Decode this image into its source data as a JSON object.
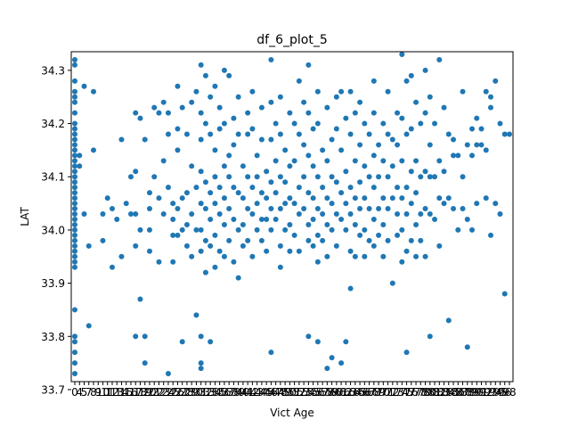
{
  "chart_data": {
    "type": "scatter",
    "title": "df_6_plot_5",
    "xlabel": "Vict Age",
    "ylabel": "LAT",
    "x_tick_labels": [
      "0",
      "4",
      "5",
      "7",
      "8",
      "9",
      "10",
      "11",
      "12",
      "13",
      "14",
      "15",
      "16",
      "17",
      "18",
      "19",
      "20",
      "21",
      "22",
      "23",
      "24",
      "25",
      "26",
      "27",
      "28",
      "29",
      "30",
      "31",
      "32",
      "33",
      "34",
      "35",
      "36",
      "37",
      "38",
      "39",
      "40",
      "41",
      "42",
      "43",
      "44",
      "45",
      "46",
      "47",
      "48",
      "49",
      "50",
      "51",
      "52",
      "53",
      "54",
      "55",
      "56",
      "57",
      "58",
      "59",
      "60",
      "61",
      "62",
      "63",
      "64",
      "65",
      "66",
      "67",
      "68",
      "69",
      "70",
      "71",
      "72",
      "73",
      "74",
      "75",
      "76",
      "77",
      "78",
      "79",
      "80",
      "81",
      "82",
      "83",
      "84",
      "85",
      "86",
      "87",
      "88",
      "89",
      "90",
      "91",
      "92",
      "93",
      "94",
      "95",
      "96",
      "98"
    ],
    "y_ticks": [
      33.7,
      33.8,
      33.9,
      34.0,
      34.1,
      34.2,
      34.3
    ],
    "ylim": [
      33.715,
      34.335
    ],
    "marker_color": "#1f77b4",
    "grid": false,
    "legend": "none",
    "points": [
      [
        0,
        34.32
      ],
      [
        0,
        34.31
      ],
      [
        0,
        34.28
      ],
      [
        0,
        34.26
      ],
      [
        0,
        34.25
      ],
      [
        0,
        34.24
      ],
      [
        0,
        34.22
      ],
      [
        0,
        34.2
      ],
      [
        0,
        34.19
      ],
      [
        0,
        34.18
      ],
      [
        0,
        34.17
      ],
      [
        0,
        34.16
      ],
      [
        0,
        34.15
      ],
      [
        0,
        34.14
      ],
      [
        0,
        34.13
      ],
      [
        0,
        34.12
      ],
      [
        0,
        34.11
      ],
      [
        0,
        34.1
      ],
      [
        0,
        34.09
      ],
      [
        0,
        34.08
      ],
      [
        0,
        34.07
      ],
      [
        0,
        34.06
      ],
      [
        0,
        34.05
      ],
      [
        0,
        34.04
      ],
      [
        0,
        34.03
      ],
      [
        0,
        34.02
      ],
      [
        0,
        34.01
      ],
      [
        0,
        34.0
      ],
      [
        0,
        33.99
      ],
      [
        0,
        33.98
      ],
      [
        0,
        33.97
      ],
      [
        0,
        33.96
      ],
      [
        0,
        33.95
      ],
      [
        0,
        33.94
      ],
      [
        0,
        33.93
      ],
      [
        0,
        33.85
      ],
      [
        0,
        33.8
      ],
      [
        0,
        33.79
      ],
      [
        0,
        33.77
      ],
      [
        0,
        33.75
      ],
      [
        0,
        33.73
      ],
      [
        4,
        34.12
      ],
      [
        4,
        34.14
      ],
      [
        5,
        34.27
      ],
      [
        5,
        34.03
      ],
      [
        7,
        33.97
      ],
      [
        7,
        33.82
      ],
      [
        8,
        34.15
      ],
      [
        8,
        34.26
      ],
      [
        10,
        34.03
      ],
      [
        10,
        33.98
      ],
      [
        11,
        34.06
      ],
      [
        12,
        33.93
      ],
      [
        12,
        34.04
      ],
      [
        13,
        34.02
      ],
      [
        14,
        34.17
      ],
      [
        14,
        33.95
      ],
      [
        15,
        34.05
      ],
      [
        16,
        34.03
      ],
      [
        16,
        34.1
      ],
      [
        17,
        34.22
      ],
      [
        17,
        34.11
      ],
      [
        17,
        34.03
      ],
      [
        17,
        33.97
      ],
      [
        17,
        33.8
      ],
      [
        18,
        33.87
      ],
      [
        18,
        34.21
      ],
      [
        18,
        34.0
      ],
      [
        19,
        34.17
      ],
      [
        19,
        33.75
      ],
      [
        19,
        33.8
      ],
      [
        20,
        34.07
      ],
      [
        20,
        34.04
      ],
      [
        20,
        34.0
      ],
      [
        20,
        33.96
      ],
      [
        21,
        34.23
      ],
      [
        21,
        34.1
      ],
      [
        22,
        34.22
      ],
      [
        22,
        34.06
      ],
      [
        22,
        33.94
      ],
      [
        23,
        34.24
      ],
      [
        23,
        34.03
      ],
      [
        23,
        34.13
      ],
      [
        24,
        33.73
      ],
      [
        24,
        34.22
      ],
      [
        24,
        34.18
      ],
      [
        24,
        34.08
      ],
      [
        25,
        34.05
      ],
      [
        25,
        34.02
      ],
      [
        25,
        33.99
      ],
      [
        25,
        33.94
      ],
      [
        26,
        34.27
      ],
      [
        26,
        34.19
      ],
      [
        26,
        34.15
      ],
      [
        26,
        34.04
      ],
      [
        26,
        33.99
      ],
      [
        27,
        33.79
      ],
      [
        27,
        34.23
      ],
      [
        27,
        34.06
      ],
      [
        27,
        34.0
      ],
      [
        28,
        34.18
      ],
      [
        28,
        34.07
      ],
      [
        28,
        34.01
      ],
      [
        28,
        33.97
      ],
      [
        29,
        34.24
      ],
      [
        29,
        34.12
      ],
      [
        29,
        34.03
      ],
      [
        29,
        33.95
      ],
      [
        30,
        33.84
      ],
      [
        30,
        34.26
      ],
      [
        30,
        34.08
      ],
      [
        30,
        34.0
      ],
      [
        31,
        34.31
      ],
      [
        31,
        34.22
      ],
      [
        31,
        34.17
      ],
      [
        31,
        34.11
      ],
      [
        31,
        34.05
      ],
      [
        31,
        34.0
      ],
      [
        31,
        33.96
      ],
      [
        31,
        33.8
      ],
      [
        31,
        33.74
      ],
      [
        31,
        33.75
      ],
      [
        32,
        34.29
      ],
      [
        32,
        34.2
      ],
      [
        32,
        34.09
      ],
      [
        32,
        34.04
      ],
      [
        32,
        33.98
      ],
      [
        32,
        33.92
      ],
      [
        33,
        34.25
      ],
      [
        33,
        34.18
      ],
      [
        33,
        34.07
      ],
      [
        33,
        34.02
      ],
      [
        33,
        33.97
      ],
      [
        33,
        33.79
      ],
      [
        34,
        34.27
      ],
      [
        34,
        34.15
      ],
      [
        34,
        34.1
      ],
      [
        34,
        34.05
      ],
      [
        34,
        33.99
      ],
      [
        34,
        33.93
      ],
      [
        35,
        34.23
      ],
      [
        35,
        34.19
      ],
      [
        35,
        34.08
      ],
      [
        35,
        34.03
      ],
      [
        35,
        33.96
      ],
      [
        36,
        34.3
      ],
      [
        36,
        34.2
      ],
      [
        36,
        34.12
      ],
      [
        36,
        34.06
      ],
      [
        36,
        34.01
      ],
      [
        36,
        33.95
      ],
      [
        37,
        34.29
      ],
      [
        37,
        34.14
      ],
      [
        37,
        34.1
      ],
      [
        37,
        34.04
      ],
      [
        37,
        33.98
      ],
      [
        38,
        34.21
      ],
      [
        38,
        34.16
      ],
      [
        38,
        34.08
      ],
      [
        38,
        34.02
      ],
      [
        38,
        33.94
      ],
      [
        39,
        34.25
      ],
      [
        39,
        34.18
      ],
      [
        39,
        34.07
      ],
      [
        39,
        34.0
      ],
      [
        39,
        33.91
      ],
      [
        40,
        34.12
      ],
      [
        40,
        34.06
      ],
      [
        40,
        34.01
      ],
      [
        40,
        33.97
      ],
      [
        41,
        34.22
      ],
      [
        41,
        34.18
      ],
      [
        41,
        34.1
      ],
      [
        41,
        34.04
      ],
      [
        41,
        33.98
      ],
      [
        42,
        34.26
      ],
      [
        42,
        34.19
      ],
      [
        42,
        34.08
      ],
      [
        42,
        34.03
      ],
      [
        42,
        33.95
      ],
      [
        43,
        34.14
      ],
      [
        43,
        34.1
      ],
      [
        43,
        34.05
      ],
      [
        43,
        34.0
      ],
      [
        44,
        34.23
      ],
      [
        44,
        34.17
      ],
      [
        44,
        34.07
      ],
      [
        44,
        34.02
      ],
      [
        44,
        33.98
      ],
      [
        45,
        34.11
      ],
      [
        45,
        34.06
      ],
      [
        45,
        34.02
      ],
      [
        45,
        33.96
      ],
      [
        46,
        34.32
      ],
      [
        46,
        34.24
      ],
      [
        46,
        34.17
      ],
      [
        46,
        34.09
      ],
      [
        46,
        34.04
      ],
      [
        46,
        34.0
      ],
      [
        46,
        33.77
      ],
      [
        47,
        34.2
      ],
      [
        47,
        34.13
      ],
      [
        47,
        34.07
      ],
      [
        47,
        34.02
      ],
      [
        48,
        34.25
      ],
      [
        48,
        34.18
      ],
      [
        48,
        34.1
      ],
      [
        48,
        34.04
      ],
      [
        48,
        33.97
      ],
      [
        48,
        33.93
      ],
      [
        49,
        34.15
      ],
      [
        49,
        34.09
      ],
      [
        49,
        34.05
      ],
      [
        49,
        34.0
      ],
      [
        50,
        34.22
      ],
      [
        50,
        34.12
      ],
      [
        50,
        34.06
      ],
      [
        50,
        34.01
      ],
      [
        50,
        33.96
      ],
      [
        51,
        34.2
      ],
      [
        51,
        34.13
      ],
      [
        51,
        34.05
      ],
      [
        51,
        33.99
      ],
      [
        52,
        34.28
      ],
      [
        52,
        34.18
      ],
      [
        52,
        34.08
      ],
      [
        52,
        34.03
      ],
      [
        52,
        33.96
      ],
      [
        53,
        34.24
      ],
      [
        53,
        34.16
      ],
      [
        53,
        34.1
      ],
      [
        53,
        34.04
      ],
      [
        54,
        34.31
      ],
      [
        54,
        34.22
      ],
      [
        54,
        34.14
      ],
      [
        54,
        34.07
      ],
      [
        54,
        34.01
      ],
      [
        54,
        33.98
      ],
      [
        54,
        33.8
      ],
      [
        55,
        34.19
      ],
      [
        55,
        34.12
      ],
      [
        55,
        34.06
      ],
      [
        55,
        34.02
      ],
      [
        55,
        33.97
      ],
      [
        56,
        34.26
      ],
      [
        56,
        34.2
      ],
      [
        56,
        34.1
      ],
      [
        56,
        34.04
      ],
      [
        56,
        33.99
      ],
      [
        56,
        33.94
      ],
      [
        56,
        33.79
      ],
      [
        57,
        34.15
      ],
      [
        57,
        34.08
      ],
      [
        57,
        34.03
      ],
      [
        57,
        33.98
      ],
      [
        58,
        33.74
      ],
      [
        58,
        34.23
      ],
      [
        58,
        34.13
      ],
      [
        58,
        34.06
      ],
      [
        58,
        34.01
      ],
      [
        58,
        33.95
      ],
      [
        59,
        34.17
      ],
      [
        59,
        34.1
      ],
      [
        59,
        34.05
      ],
      [
        59,
        34.0
      ],
      [
        59,
        33.76
      ],
      [
        60,
        34.25
      ],
      [
        60,
        34.19
      ],
      [
        60,
        34.09
      ],
      [
        60,
        34.03
      ],
      [
        60,
        33.97
      ],
      [
        61,
        34.26
      ],
      [
        61,
        34.15
      ],
      [
        61,
        34.07
      ],
      [
        61,
        34.02
      ],
      [
        61,
        33.75
      ],
      [
        62,
        34.21
      ],
      [
        62,
        34.11
      ],
      [
        62,
        34.05
      ],
      [
        62,
        34.0
      ],
      [
        62,
        33.79
      ],
      [
        63,
        34.26
      ],
      [
        63,
        34.18
      ],
      [
        63,
        34.08
      ],
      [
        63,
        34.03
      ],
      [
        63,
        33.96
      ],
      [
        63,
        33.89
      ],
      [
        64,
        34.22
      ],
      [
        64,
        34.13
      ],
      [
        64,
        34.06
      ],
      [
        64,
        34.01
      ],
      [
        64,
        33.95
      ],
      [
        65,
        34.24
      ],
      [
        65,
        34.16
      ],
      [
        65,
        34.09
      ],
      [
        65,
        34.04
      ],
      [
        65,
        33.99
      ],
      [
        66,
        34.2
      ],
      [
        66,
        34.12
      ],
      [
        66,
        34.06
      ],
      [
        66,
        34.0
      ],
      [
        66,
        33.95
      ],
      [
        67,
        34.18
      ],
      [
        67,
        34.1
      ],
      [
        67,
        34.04
      ],
      [
        67,
        33.98
      ],
      [
        68,
        34.28
      ],
      [
        68,
        34.22
      ],
      [
        68,
        34.14
      ],
      [
        68,
        34.08
      ],
      [
        68,
        34.02
      ],
      [
        68,
        33.97
      ],
      [
        69,
        34.16
      ],
      [
        69,
        34.1
      ],
      [
        69,
        34.04
      ],
      [
        69,
        33.99
      ],
      [
        70,
        34.2
      ],
      [
        70,
        34.13
      ],
      [
        70,
        34.06
      ],
      [
        70,
        34.01
      ],
      [
        70,
        33.95
      ],
      [
        71,
        34.26
      ],
      [
        71,
        34.18
      ],
      [
        71,
        34.1
      ],
      [
        71,
        34.04
      ],
      [
        71,
        33.98
      ],
      [
        72,
        34.17
      ],
      [
        72,
        34.12
      ],
      [
        72,
        34.06
      ],
      [
        72,
        33.9
      ],
      [
        73,
        34.22
      ],
      [
        73,
        34.16
      ],
      [
        73,
        34.08
      ],
      [
        73,
        34.03
      ],
      [
        73,
        33.99
      ],
      [
        74,
        34.33
      ],
      [
        74,
        34.21
      ],
      [
        74,
        34.13
      ],
      [
        74,
        34.06
      ],
      [
        74,
        34.0
      ],
      [
        74,
        33.94
      ],
      [
        75,
        34.28
      ],
      [
        75,
        34.18
      ],
      [
        75,
        34.08
      ],
      [
        75,
        34.03
      ],
      [
        75,
        33.96
      ],
      [
        75,
        33.77
      ],
      [
        76,
        34.29
      ],
      [
        76,
        34.19
      ],
      [
        76,
        34.11
      ],
      [
        76,
        34.05
      ],
      [
        76,
        33.98
      ],
      [
        77,
        34.24
      ],
      [
        77,
        34.13
      ],
      [
        77,
        34.07
      ],
      [
        77,
        34.01
      ],
      [
        77,
        33.95
      ],
      [
        78,
        34.2
      ],
      [
        78,
        34.1
      ],
      [
        78,
        34.03
      ],
      [
        78,
        33.98
      ],
      [
        79,
        34.3
      ],
      [
        79,
        34.22
      ],
      [
        79,
        34.11
      ],
      [
        79,
        34.04
      ],
      [
        79,
        33.95
      ],
      [
        80,
        34.25
      ],
      [
        80,
        34.16
      ],
      [
        80,
        34.1
      ],
      [
        80,
        34.03
      ],
      [
        80,
        33.8
      ],
      [
        81,
        34.2
      ],
      [
        81,
        34.1
      ],
      [
        81,
        34.02
      ],
      [
        82,
        34.32
      ],
      [
        82,
        34.13
      ],
      [
        82,
        34.06
      ],
      [
        82,
        33.97
      ],
      [
        83,
        34.23
      ],
      [
        83,
        34.11
      ],
      [
        83,
        34.05
      ],
      [
        84,
        34.18
      ],
      [
        84,
        34.06
      ],
      [
        84,
        33.83
      ],
      [
        85,
        34.17
      ],
      [
        85,
        34.14
      ],
      [
        85,
        34.04
      ],
      [
        86,
        34.14
      ],
      [
        86,
        34.0
      ],
      [
        87,
        34.26
      ],
      [
        87,
        34.1
      ],
      [
        87,
        34.04
      ],
      [
        88,
        34.16
      ],
      [
        88,
        34.02
      ],
      [
        88,
        33.78
      ],
      [
        89,
        34.19
      ],
      [
        89,
        34.14
      ],
      [
        89,
        34.0
      ],
      [
        90,
        34.21
      ],
      [
        90,
        34.16
      ],
      [
        90,
        34.05
      ],
      [
        91,
        34.19
      ],
      [
        91,
        34.16
      ],
      [
        92,
        34.26
      ],
      [
        92,
        34.15
      ],
      [
        92,
        34.06
      ],
      [
        93,
        34.25
      ],
      [
        93,
        34.23
      ],
      [
        93,
        33.99
      ],
      [
        94,
        34.28
      ],
      [
        94,
        34.05
      ],
      [
        95,
        34.2
      ],
      [
        95,
        34.03
      ],
      [
        96,
        33.88
      ],
      [
        96,
        34.18
      ],
      [
        98,
        34.18
      ]
    ]
  }
}
